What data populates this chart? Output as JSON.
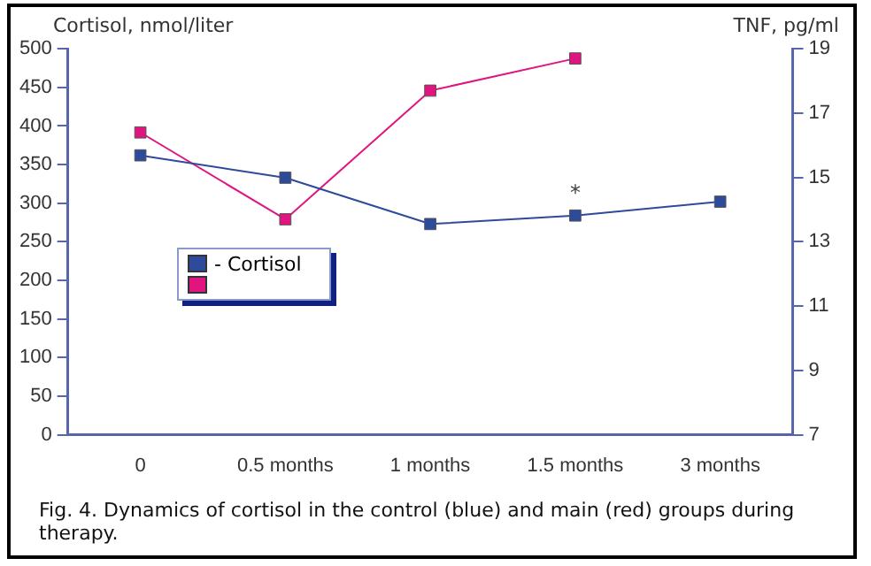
{
  "chart_data": {
    "type": "line",
    "ylabel": "Cortisol, nmol/liter",
    "y2label": "TNF, pg/ml",
    "categories": [
      "0",
      "0.5 months",
      "1 months",
      "1.5 months",
      "3 months"
    ],
    "series": [
      {
        "name": "- Cortisol",
        "color": "#2e4a9a",
        "values": [
          362,
          333,
          273,
          284,
          302
        ]
      },
      {
        "color": "#e0157f",
        "axis": "y2",
        "values": [
          16.4,
          13.7,
          17.7,
          18.7,
          null
        ]
      }
    ],
    "ylim": [
      0,
      500
    ],
    "yticks": [
      0,
      50,
      100,
      150,
      200,
      250,
      300,
      350,
      400,
      450,
      500
    ],
    "y2lim": [
      7,
      19
    ],
    "y2ticks": [
      7,
      9,
      11,
      13,
      15,
      17,
      19
    ],
    "marker": "square",
    "line_style": "solid",
    "grid": false,
    "legend": "left",
    "annotations": [
      {
        "text": "*",
        "x": "1.5 months",
        "y": 284
      },
      "Fig. 4. Dynamics of cortisol in the control (blue) and main (red) groups during therapy."
    ]
  }
}
